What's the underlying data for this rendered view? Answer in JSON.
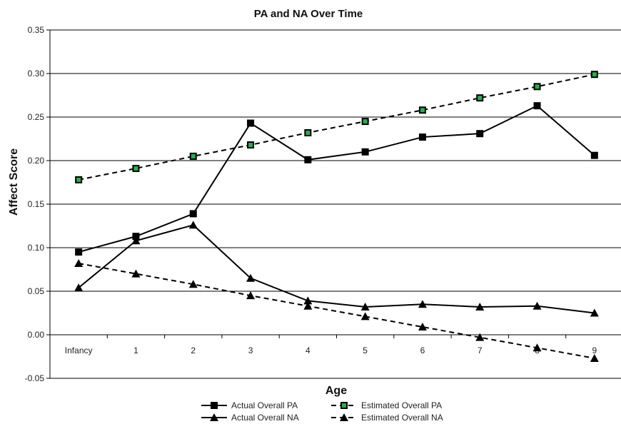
{
  "chart_data": {
    "type": "line",
    "title": "PA and NA Over Time",
    "xlabel": "Age",
    "ylabel": "Affect Score",
    "categories": [
      "Infancy",
      "1",
      "2",
      "3",
      "4",
      "5",
      "6",
      "7",
      "8",
      "9"
    ],
    "ylim": [
      -0.05,
      0.35
    ],
    "yticks": [
      "-0.05",
      "0.00",
      "0.05",
      "0.10",
      "0.15",
      "0.20",
      "0.25",
      "0.30",
      "0.35"
    ],
    "yticks_values": [
      -0.05,
      0.0,
      0.05,
      0.1,
      0.15,
      0.2,
      0.25,
      0.3,
      0.35
    ],
    "grid": "horizontal",
    "legend_position": "bottom",
    "series": [
      {
        "name": "Actual Overall PA",
        "values": [
          0.095,
          0.113,
          0.139,
          0.243,
          0.201,
          0.21,
          0.227,
          0.231,
          0.263,
          0.206
        ],
        "line": "solid",
        "marker": "square",
        "marker_color": "#000000"
      },
      {
        "name": "Actual Overall NA",
        "values": [
          0.054,
          0.108,
          0.126,
          0.065,
          0.039,
          0.032,
          0.035,
          0.032,
          0.033,
          0.025
        ],
        "line": "solid",
        "marker": "triangle",
        "marker_color": "#000000"
      },
      {
        "name": "Estimated Overall PA",
        "values": [
          0.178,
          0.191,
          0.205,
          0.218,
          0.232,
          0.245,
          0.258,
          0.272,
          0.285,
          0.299
        ],
        "line": "dashed",
        "marker": "square",
        "marker_color": "#22b14c"
      },
      {
        "name": "Estimated Overall NA",
        "values": [
          0.082,
          0.07,
          0.058,
          0.045,
          0.033,
          0.021,
          0.009,
          -0.003,
          -0.015,
          -0.027
        ],
        "line": "dashed",
        "marker": "triangle",
        "marker_color": "#000000"
      }
    ]
  }
}
